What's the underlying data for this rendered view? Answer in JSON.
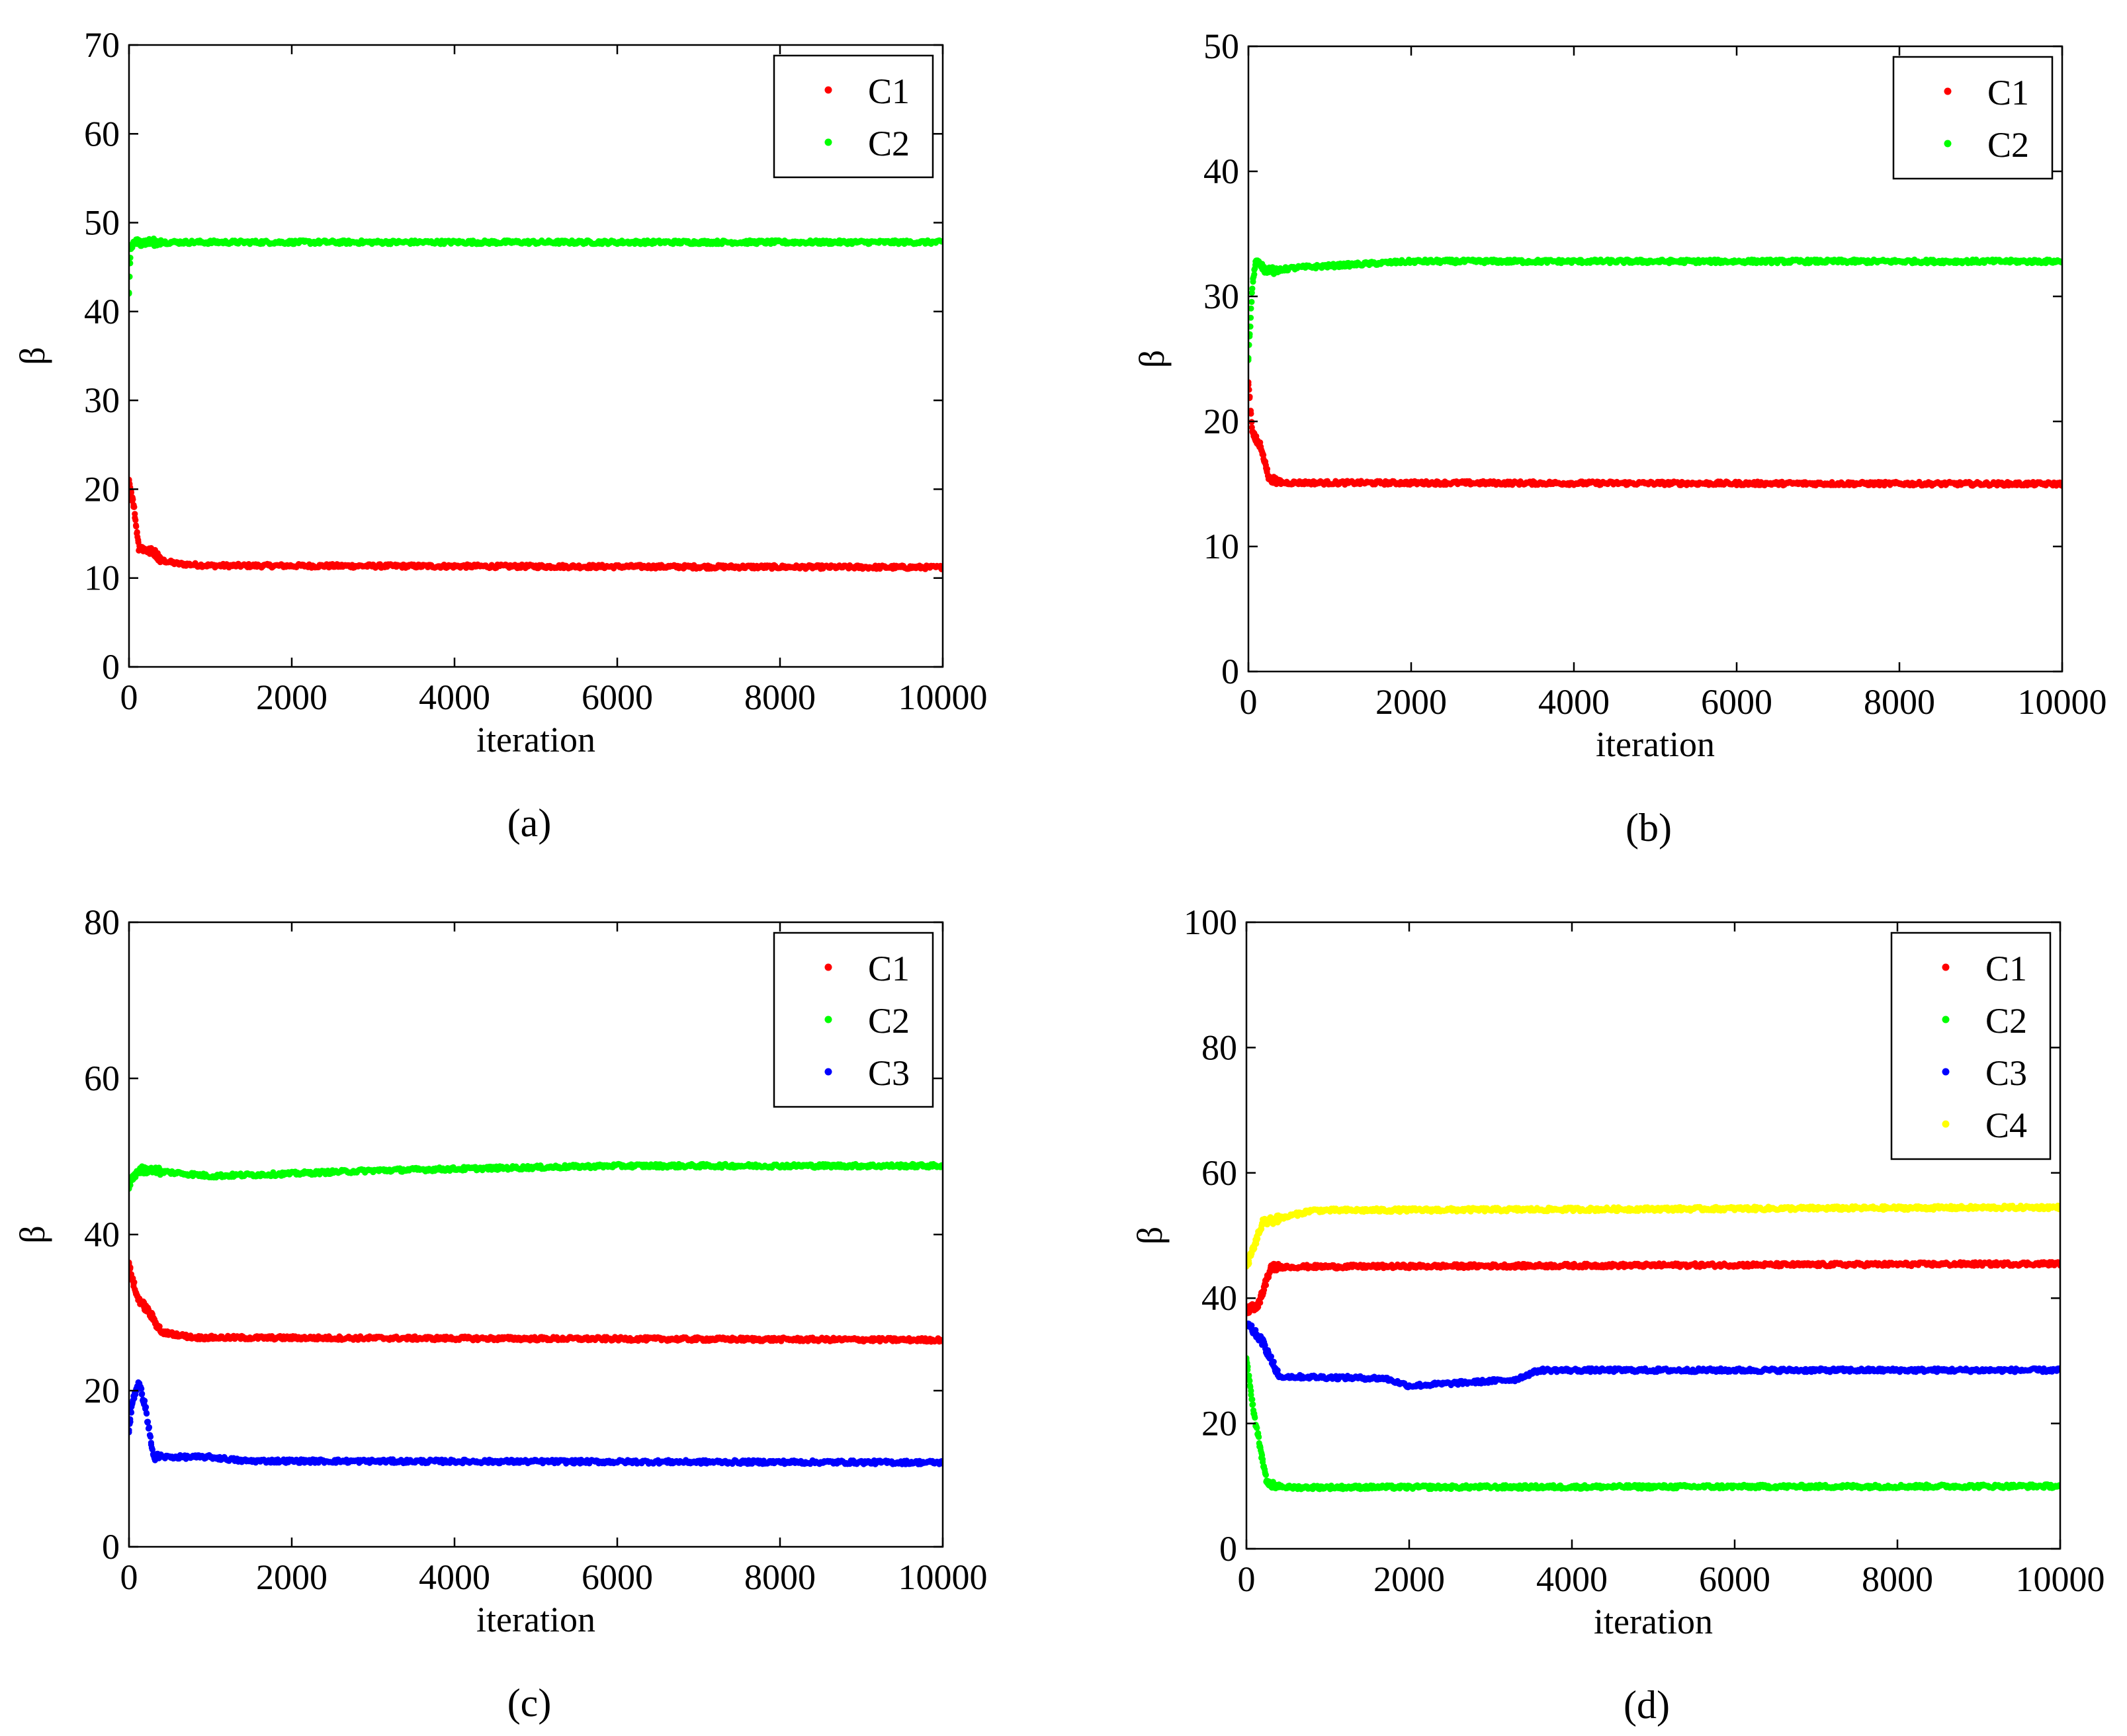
{
  "chart_data": [
    {
      "type": "scatter",
      "caption": "(a)",
      "xlabel": "iteration",
      "ylabel": "β",
      "xlim": [
        0,
        10000
      ],
      "ylim": [
        0,
        70
      ],
      "xticks": [
        "0",
        "2000",
        "4000",
        "6000",
        "8000",
        "10000"
      ],
      "yticks": [
        "0",
        "10",
        "20",
        "30",
        "40",
        "50",
        "60",
        "70"
      ],
      "legend_position": "top-right",
      "series": [
        {
          "name": "C1",
          "color": "#ff0000",
          "start": 21,
          "points": [
            [
              0,
              21
            ],
            [
              60,
              18
            ],
            [
              120,
              13.5
            ],
            [
              250,
              13
            ],
            [
              300,
              13
            ],
            [
              400,
              12
            ],
            [
              600,
              11.6
            ],
            [
              1000,
              11.4
            ],
            [
              10000,
              11.2
            ]
          ]
        },
        {
          "name": "C2",
          "color": "#00ff00",
          "start": 42,
          "points": [
            [
              0,
              42
            ],
            [
              20,
              47
            ],
            [
              60,
              47.8
            ],
            [
              10000,
              47.8
            ]
          ]
        }
      ]
    },
    {
      "type": "scatter",
      "caption": "(b)",
      "xlabel": "iteration",
      "ylabel": "β",
      "xlim": [
        0,
        10000
      ],
      "ylim": [
        0,
        50
      ],
      "xticks": [
        "0",
        "2000",
        "4000",
        "6000",
        "8000",
        "10000"
      ],
      "yticks": [
        "0",
        "10",
        "20",
        "30",
        "40",
        "50"
      ],
      "legend_position": "top-right",
      "series": [
        {
          "name": "C1",
          "color": "#ff0000",
          "start": 23,
          "points": [
            [
              0,
              23
            ],
            [
              50,
              19
            ],
            [
              150,
              18
            ],
            [
              250,
              15.5
            ],
            [
              400,
              15.1
            ],
            [
              10000,
              15
            ]
          ]
        },
        {
          "name": "C2",
          "color": "#00ff00",
          "start": 25,
          "points": [
            [
              0,
              25
            ],
            [
              50,
              31
            ],
            [
              100,
              33
            ],
            [
              200,
              32
            ],
            [
              600,
              32.3
            ],
            [
              2000,
              32.8
            ],
            [
              10000,
              32.8
            ]
          ]
        }
      ]
    },
    {
      "type": "scatter",
      "caption": "(c)",
      "xlabel": "iteration",
      "ylabel": "β",
      "xlim": [
        0,
        10000
      ],
      "ylim": [
        0,
        80
      ],
      "xticks": [
        "0",
        "2000",
        "4000",
        "6000",
        "8000",
        "10000"
      ],
      "yticks": [
        "0",
        "20",
        "40",
        "60",
        "80"
      ],
      "legend_position": "top-right",
      "series": [
        {
          "name": "C1",
          "color": "#ff0000",
          "start": 36,
          "points": [
            [
              0,
              36
            ],
            [
              100,
              32
            ],
            [
              250,
              30
            ],
            [
              400,
              27.5
            ],
            [
              800,
              26.8
            ],
            [
              10000,
              26.5
            ]
          ]
        },
        {
          "name": "C2",
          "color": "#00ff00",
          "start": 46,
          "points": [
            [
              0,
              46
            ],
            [
              50,
              47.5
            ],
            [
              150,
              48.3
            ],
            [
              1000,
              47.5
            ],
            [
              2000,
              47.8
            ],
            [
              3000,
              48.2
            ],
            [
              6000,
              48.8
            ],
            [
              10000,
              48.8
            ]
          ]
        },
        {
          "name": "C3",
          "color": "#0000ff",
          "start": 15,
          "points": [
            [
              0,
              15
            ],
            [
              50,
              19
            ],
            [
              120,
              21
            ],
            [
              200,
              18
            ],
            [
              300,
              11.5
            ],
            [
              1000,
              11.5
            ],
            [
              1400,
              11
            ],
            [
              10000,
              10.8
            ]
          ]
        }
      ]
    },
    {
      "type": "scatter",
      "caption": "(d)",
      "xlabel": "iteration",
      "ylabel": "β",
      "xlim": [
        0,
        10000
      ],
      "ylim": [
        0,
        100
      ],
      "xticks": [
        "0",
        "2000",
        "4000",
        "6000",
        "8000",
        "10000"
      ],
      "yticks": [
        "0",
        "20",
        "40",
        "60",
        "80",
        "100"
      ],
      "legend_position": "top-right",
      "series": [
        {
          "name": "C1",
          "color": "#ff0000",
          "start": 38,
          "points": [
            [
              0,
              38
            ],
            [
              150,
              39
            ],
            [
              300,
              45
            ],
            [
              10000,
              45.5
            ]
          ]
        },
        {
          "name": "C2",
          "color": "#00ff00",
          "start": 30,
          "points": [
            [
              0,
              30
            ],
            [
              100,
              21
            ],
            [
              250,
              10.5
            ],
            [
              500,
              9.8
            ],
            [
              10000,
              10
            ]
          ]
        },
        {
          "name": "C3",
          "color": "#0000ff",
          "start": 36,
          "points": [
            [
              0,
              36
            ],
            [
              200,
              33
            ],
            [
              400,
              27.5
            ],
            [
              1700,
              27.2
            ],
            [
              2000,
              26
            ],
            [
              3300,
              27
            ],
            [
              3600,
              28.5
            ],
            [
              10000,
              28.5
            ]
          ]
        },
        {
          "name": "C4",
          "color": "#ffff00",
          "start": 45,
          "points": [
            [
              0,
              45
            ],
            [
              200,
              52
            ],
            [
              800,
              54
            ],
            [
              10000,
              54.5
            ]
          ]
        }
      ]
    }
  ]
}
